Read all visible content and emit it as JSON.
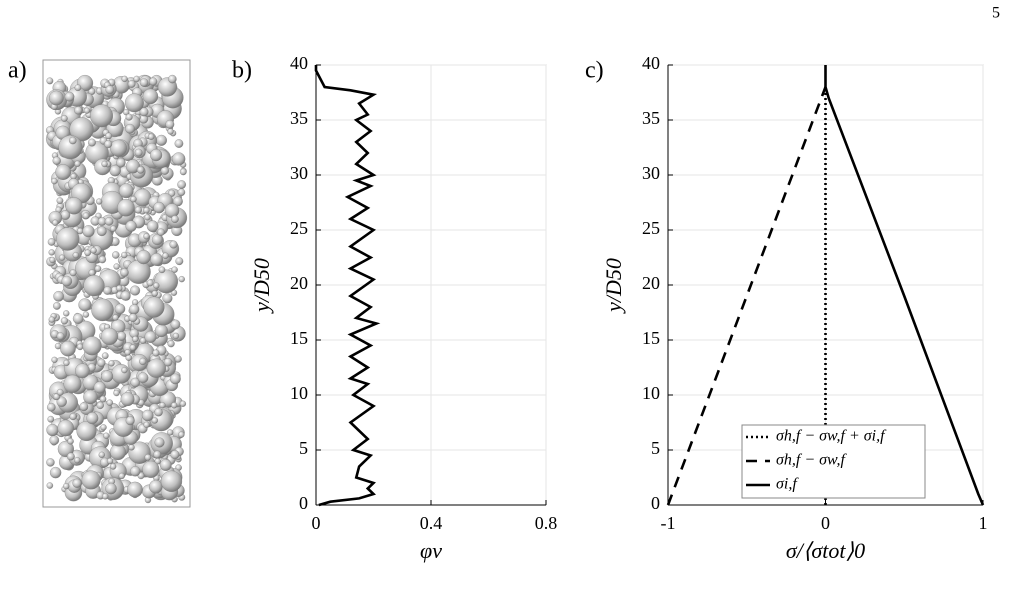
{
  "page_number": "5",
  "panel_labels": [
    "a)",
    "b)",
    "c)"
  ],
  "chart_data": [
    {
      "type": "line",
      "x_label": "φv",
      "y_label": "y/D50",
      "xlim": [
        0,
        0.8
      ],
      "xticks": [
        0,
        0.4,
        0.8
      ],
      "ylim": [
        0,
        40
      ],
      "yticks": [
        0,
        5,
        10,
        15,
        20,
        25,
        30,
        35,
        40
      ],
      "grid": true,
      "series": [
        {
          "color": "#000000",
          "dash": "solid",
          "x": [
            0.01,
            0.05,
            0.15,
            0.2,
            0.18,
            0.2,
            0.14,
            0.15,
            0.19,
            0.13,
            0.18,
            0.12,
            0.2,
            0.13,
            0.18,
            0.12,
            0.18,
            0.12,
            0.19,
            0.12,
            0.21,
            0.14,
            0.19,
            0.12,
            0.2,
            0.12,
            0.19,
            0.12,
            0.2,
            0.12,
            0.18,
            0.11,
            0.19,
            0.14,
            0.2,
            0.14,
            0.18,
            0.14,
            0.19,
            0.14,
            0.18,
            0.15,
            0.2,
            0.12,
            0.03,
            0,
            0
          ],
          "values": [
            0,
            0.3,
            0.6,
            1,
            1.5,
            2,
            2.5,
            3.5,
            4.5,
            5,
            6,
            7.5,
            9,
            10,
            11,
            11.5,
            12.5,
            13.5,
            14.5,
            15.5,
            16.5,
            17,
            18,
            19,
            20.5,
            21.5,
            22.5,
            23.5,
            25,
            26,
            27,
            28,
            29,
            29.5,
            30,
            31,
            32,
            33,
            34,
            35,
            35.5,
            36.5,
            37.3,
            37.7,
            38,
            39.5,
            40
          ]
        }
      ]
    },
    {
      "type": "line",
      "x_label": "σ/⟨σtot⟩0",
      "y_label": "y/D50",
      "xlim": [
        -1,
        1
      ],
      "xticks": [
        -1,
        0,
        1
      ],
      "ylim": [
        0,
        40
      ],
      "yticks": [
        0,
        5,
        10,
        15,
        20,
        25,
        30,
        35,
        40
      ],
      "grid": true,
      "legend": "lower center",
      "series": [
        {
          "name": "σh,f − σw,f + σi,f",
          "color": "#000000",
          "dash": "dotted",
          "x": [
            0,
            0
          ],
          "values": [
            0,
            38
          ]
        },
        {
          "name": "σh,f − σw,f",
          "color": "#000000",
          "dash": "dashed",
          "x": [
            -1,
            0
          ],
          "values": [
            0,
            38
          ]
        },
        {
          "name": "σi,f",
          "color": "#000000",
          "dash": "solid",
          "x": [
            1,
            0.97,
            0.5,
            0.02,
            0,
            0
          ],
          "values": [
            0,
            1,
            19,
            37,
            38,
            40
          ]
        }
      ]
    }
  ]
}
